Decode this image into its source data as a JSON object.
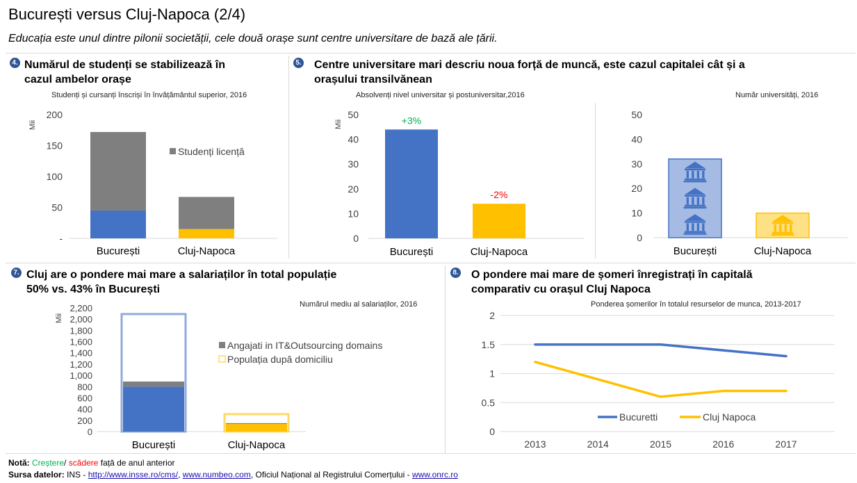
{
  "page": {
    "title": "București versus Cluj-Napoca (2/4)",
    "subtitle": "Educația este unul dintre pilonii societății, cele două orașe sunt centre universitare de bază ale țării."
  },
  "panels": {
    "p4": {
      "badge": "4.",
      "title_line1": "Numărul de studenți se stabilizează în",
      "title_line2": "cazul ambelor orașe"
    },
    "p5": {
      "badge": "5.",
      "title_line1": "Centre universitare mari descriu noua forță de muncă, este cazul capitalei cât și a",
      "title_line2": "orașului transilvănean"
    },
    "p7": {
      "badge": "7.",
      "title_line1": "Cluj are o pondere mai mare a salariaților în total populație",
      "title_line2": "50% vs. 43% în București"
    },
    "p8": {
      "badge": "8.",
      "title_line1": "O pondere mai mare de șomeri înregistrați în capitală",
      "title_line2": "comparativ cu orașul Cluj Napoca"
    }
  },
  "colors": {
    "blue": "#4472c4",
    "gray": "#7f7f7f",
    "yellow": "#ffc000",
    "lightblue": "#8faadc",
    "lightyellow": "#ffd966",
    "green": "#00b050",
    "red": "#ff0000",
    "badge": "#2e5597"
  },
  "chart_data": [
    {
      "id": "students",
      "type": "bar",
      "subtitle": "Studenți și cursanți înscriși în învățământul superior, 2016",
      "unit_label": "Mii",
      "categories": [
        "București",
        "Cluj-Napoca"
      ],
      "series": [
        {
          "name": "",
          "values": [
            45,
            15
          ],
          "color": "#4472c4"
        },
        {
          "name": "Studenți licență",
          "values": [
            127,
            52
          ],
          "color": "#7f7f7f"
        }
      ],
      "ylim": [
        0,
        200
      ],
      "yticks": [
        "-",
        "50",
        "100",
        "150",
        "200"
      ],
      "legend_position": "right"
    },
    {
      "id": "graduates",
      "type": "bar",
      "subtitle": "Absolvenți nivel universitar și postuniversitar,2016",
      "unit_label": "Mii",
      "categories": [
        "București",
        "Cluj-Napoca"
      ],
      "values": [
        44,
        14
      ],
      "colors": [
        "#4472c4",
        "#ffc000"
      ],
      "labels": [
        "+3%",
        "-2%"
      ],
      "ylim": [
        0,
        50
      ],
      "yticks": [
        "0",
        "10",
        "20",
        "30",
        "40",
        "50"
      ]
    },
    {
      "id": "universities",
      "type": "bar",
      "subtitle": "Număr universități, 2016",
      "categories": [
        "București",
        "Cluj-Napoca"
      ],
      "values": [
        32,
        10
      ],
      "icons": [
        "university-icon",
        "university-icon"
      ],
      "ylim": [
        0,
        50
      ],
      "yticks": [
        "0",
        "10",
        "20",
        "30",
        "40",
        "50"
      ]
    },
    {
      "id": "employees",
      "type": "bar",
      "subtitle": "Numărul mediu al salariaților, 2016",
      "unit_label": "Mii",
      "categories": [
        "București",
        "Cluj-Napoca"
      ],
      "series": [
        {
          "name": "Populația după domiciliu",
          "values": [
            2090,
            310
          ]
        },
        {
          "name": "",
          "values": [
            800,
            135
          ]
        },
        {
          "name": "Angajati in IT&Outsourcing domains",
          "values": [
            90,
            15
          ]
        }
      ],
      "ylim": [
        0,
        2200
      ],
      "yticks": [
        "0",
        "200",
        "400",
        "600",
        "800",
        "1,000",
        "1,200",
        "1,400",
        "1,600",
        "1,800",
        "2,000",
        "2,200"
      ],
      "legend_position": "right"
    },
    {
      "id": "unemployed",
      "type": "line",
      "subtitle": "Ponderea șomerilor în totalul resurselor de munca, 2013-2017",
      "x": [
        "2013",
        "2014",
        "2015",
        "2016",
        "2017"
      ],
      "series": [
        {
          "name": "Bucuretti",
          "values": [
            1.5,
            1.5,
            1.5,
            1.4,
            1.3
          ],
          "color": "#4472c4"
        },
        {
          "name": "Cluj Napoca",
          "values": [
            1.2,
            0.9,
            0.6,
            0.7,
            0.7
          ],
          "color": "#ffc000"
        }
      ],
      "ylim": [
        0,
        2
      ],
      "yticks": [
        "0",
        "0.5",
        "1",
        "1.5",
        "2"
      ],
      "grid": true,
      "legend_position": "bottom"
    }
  ],
  "notes": {
    "nota_label": "Notă:",
    "crestere": "Creștere",
    "slash": "/",
    "scadere": "scădere",
    "rest": "față de anul anterior",
    "source_label": "Sursa datelor:",
    "source_ins": "INS -",
    "link1": "http://www.insse.ro/cms/",
    "sep1": ",",
    "link2": "www.numbeo.com",
    "source_onrc": ", Oficiul Național al Registrului Comerțului -",
    "link3": "www.onrc.ro"
  }
}
